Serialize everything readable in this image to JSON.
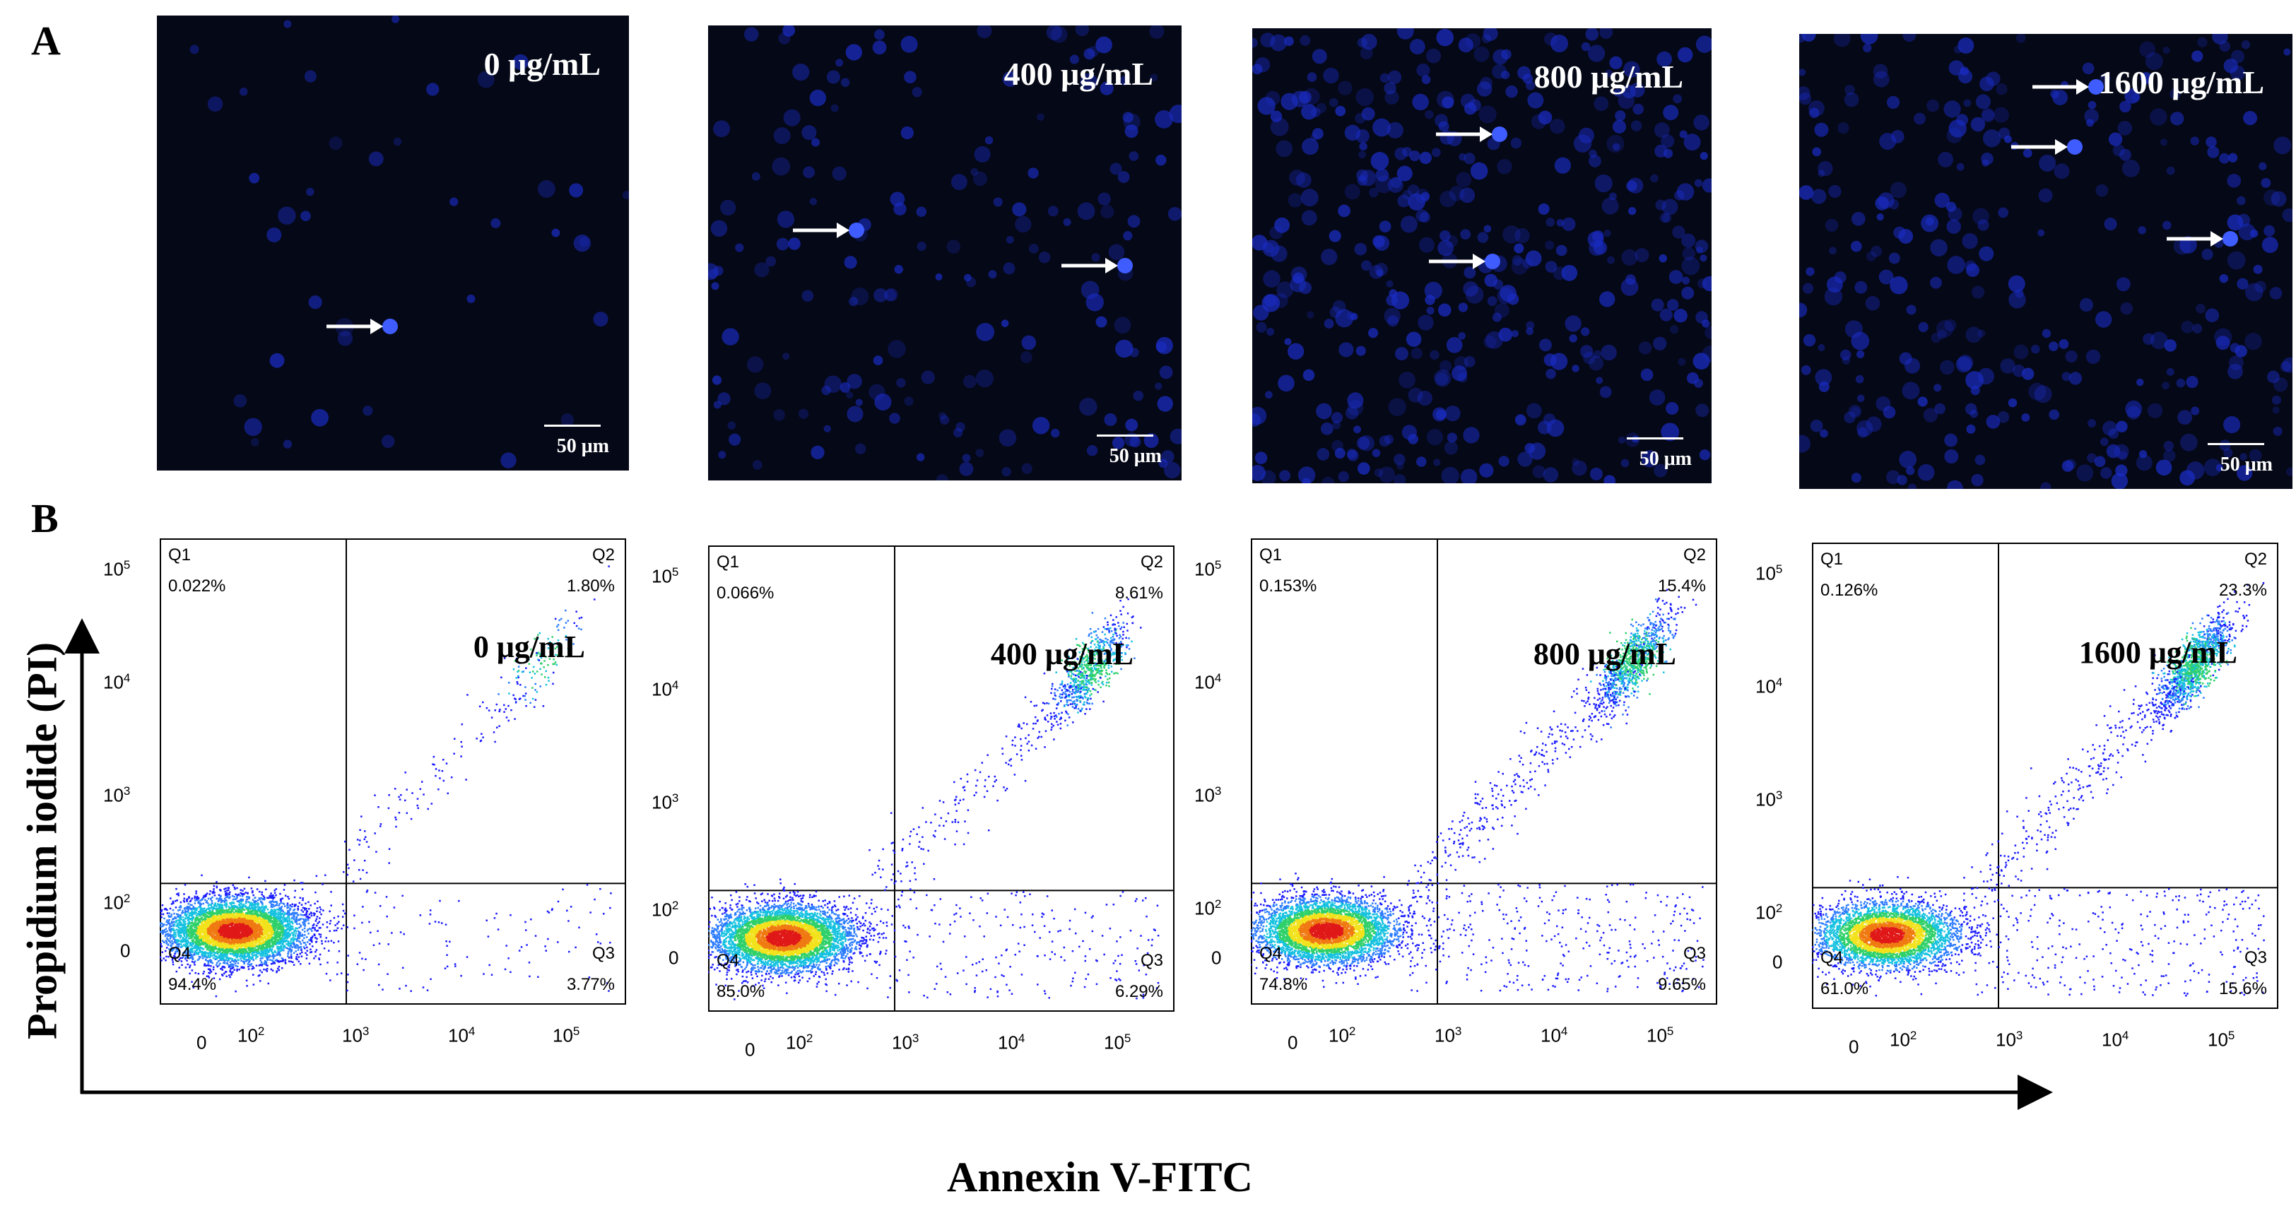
{
  "panel_a_label": "A",
  "panel_b_label": "B",
  "scale_label": "50 μm",
  "micrographs": [
    {
      "concentration": "0 μg/mL"
    },
    {
      "concentration": "400 μg/mL"
    },
    {
      "concentration": "800 μg/mL"
    },
    {
      "concentration": "1600 μg/mL"
    }
  ],
  "flow_plots": [
    {
      "concentration": "0 μg/mL",
      "q1": "0.022%",
      "q2": "1.80%",
      "q3": "3.77%",
      "q4": "94.4%"
    },
    {
      "concentration": "400 μg/mL",
      "q1": "0.066%",
      "q2": "8.61%",
      "q3": "6.29%",
      "q4": "85.0%"
    },
    {
      "concentration": "800 μg/mL",
      "q1": "0.153%",
      "q2": "15.4%",
      "q3": "9.65%",
      "q4": "74.8%"
    },
    {
      "concentration": "1600 μg/mL",
      "q1": "0.126%",
      "q2": "23.3%",
      "q3": "15.6%",
      "q4": "61.0%"
    }
  ],
  "quadrant_names": {
    "q1": "Q1",
    "q2": "Q2",
    "q3": "Q3",
    "q4": "Q4"
  },
  "y_ticks": [
    {
      "base": "10",
      "exp": "5"
    },
    {
      "base": "10",
      "exp": "4"
    },
    {
      "base": "10",
      "exp": "3"
    },
    {
      "base": "10",
      "exp": "2"
    },
    {
      "base": "0",
      "exp": ""
    }
  ],
  "x_ticks": [
    {
      "base": "0",
      "exp": ""
    },
    {
      "base": "10",
      "exp": "2"
    },
    {
      "base": "10",
      "exp": "3"
    },
    {
      "base": "10",
      "exp": "4"
    },
    {
      "base": "10",
      "exp": "5"
    }
  ],
  "y_axis_title": "Propidium iodide (PI)",
  "x_axis_title": "Annexin V-FITC"
}
